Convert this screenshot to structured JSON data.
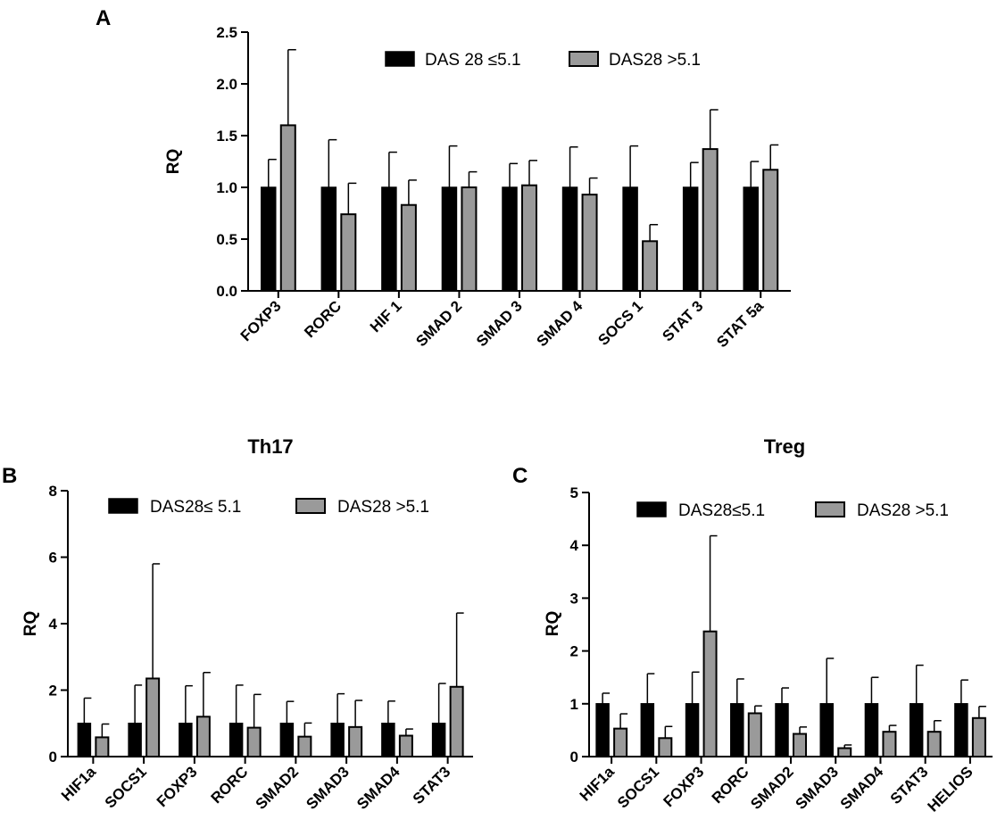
{
  "colors": {
    "series1": "#000000",
    "series2": "#9a9a9a",
    "axis": "#000000"
  },
  "chart_data": [
    {
      "panel": "A",
      "type": "bar",
      "title": "",
      "xlabel": "",
      "ylabel": "RQ",
      "ylim": [
        0,
        2.5
      ],
      "yticks": [
        "0.0",
        "0.5",
        "1.0",
        "1.5",
        "2.0",
        "2.5"
      ],
      "categories": [
        "FOXP3",
        "RORC",
        "HIF 1",
        "SMAD 2",
        "SMAD 3",
        "SMAD 4",
        "SOCS 1",
        "STAT 3",
        "STAT 5a"
      ],
      "series": [
        {
          "name": "DAS 28 ≤5.1",
          "values": [
            1.0,
            1.0,
            1.0,
            1.0,
            1.0,
            1.0,
            1.0,
            1.0,
            1.0
          ],
          "errors": [
            0.27,
            0.46,
            0.34,
            0.4,
            0.23,
            0.39,
            0.4,
            0.24,
            0.25
          ]
        },
        {
          "name": "DAS28 >5.1",
          "values": [
            1.6,
            0.74,
            0.83,
            1.0,
            1.02,
            0.93,
            0.48,
            1.37,
            1.17
          ],
          "errors": [
            0.73,
            0.3,
            0.24,
            0.15,
            0.24,
            0.16,
            0.16,
            0.38,
            0.24
          ]
        }
      ],
      "legend": "top-center"
    },
    {
      "panel": "B",
      "type": "bar",
      "title": "Th17",
      "xlabel": "",
      "ylabel": "RQ",
      "ylim": [
        0,
        8
      ],
      "yticks": [
        "0",
        "2",
        "4",
        "6",
        "8"
      ],
      "categories": [
        "HIF1a",
        "SOCS1",
        "FOXP3",
        "RORC",
        "SMAD2",
        "SMAD3",
        "SMAD4",
        "STAT3"
      ],
      "series": [
        {
          "name": "DAS28≤ 5.1",
          "values": [
            1.0,
            1.0,
            1.0,
            1.0,
            1.0,
            1.0,
            1.0,
            1.0
          ],
          "errors": [
            0.76,
            1.15,
            1.13,
            1.15,
            0.66,
            0.89,
            0.67,
            1.2
          ]
        },
        {
          "name": "DAS28 >5.1",
          "values": [
            0.58,
            2.35,
            1.2,
            0.87,
            0.6,
            0.89,
            0.63,
            2.1
          ],
          "errors": [
            0.4,
            3.45,
            1.33,
            1.0,
            0.41,
            0.8,
            0.2,
            2.22
          ]
        }
      ],
      "legend": "top-center"
    },
    {
      "panel": "C",
      "type": "bar",
      "title": "Treg",
      "xlabel": "",
      "ylabel": "RQ",
      "ylim": [
        0,
        5
      ],
      "yticks": [
        "0",
        "1",
        "2",
        "3",
        "4",
        "5"
      ],
      "categories": [
        "HIF1a",
        "SOCS1",
        "FOXP3",
        "RORC",
        "SMAD2",
        "SMAD3",
        "SMAD4",
        "STAT3",
        "HELIOS"
      ],
      "series": [
        {
          "name": "DAS28≤5.1",
          "values": [
            1.0,
            1.0,
            1.0,
            1.0,
            1.0,
            1.0,
            1.0,
            1.0,
            1.0
          ],
          "errors": [
            0.2,
            0.57,
            0.6,
            0.47,
            0.3,
            0.86,
            0.5,
            0.73,
            0.45
          ]
        },
        {
          "name": "DAS28 >5.1",
          "values": [
            0.53,
            0.35,
            2.37,
            0.82,
            0.43,
            0.16,
            0.47,
            0.47,
            0.73
          ],
          "errors": [
            0.28,
            0.22,
            1.81,
            0.14,
            0.13,
            0.06,
            0.12,
            0.21,
            0.22
          ]
        }
      ],
      "legend": "top-center"
    }
  ]
}
